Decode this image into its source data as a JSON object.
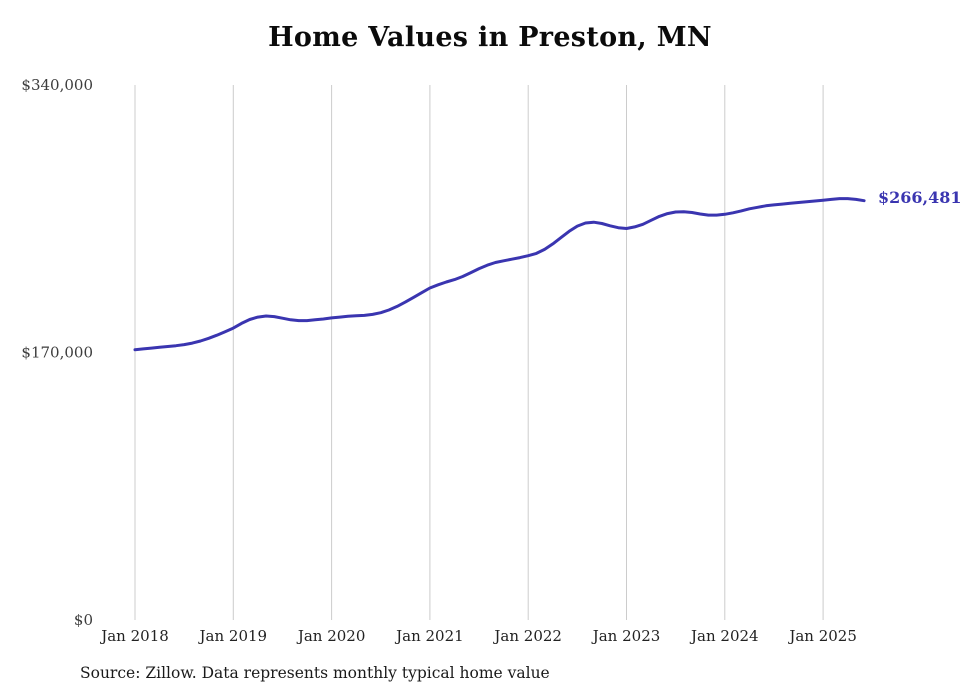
{
  "page": {
    "source_note": "Source: Zillow. Data represents monthly typical home value"
  },
  "chart_data": {
    "type": "line",
    "title": "Home Values in Preston, MN",
    "series_name": "Monthly typical home value",
    "x_start": "Jan 2018",
    "x_end": "Jun 2025",
    "x_tick_labels": [
      "Jan 2018",
      "Jan 2019",
      "Jan 2020",
      "Jan 2021",
      "Jan 2022",
      "Jan 2023",
      "Jan 2024",
      "Jan 2025"
    ],
    "y_ticks": [
      {
        "label": "$0",
        "value": 0
      },
      {
        "label": "$170,000",
        "value": 170000
      },
      {
        "label": "$340,000",
        "value": 340000
      }
    ],
    "ylim": [
      0,
      340000
    ],
    "grid": "vertical-only",
    "legend": "none",
    "end_label": "$266,481",
    "end_value": 266481,
    "line_color": "#3a35b0",
    "grid_color": "#cccccc",
    "values": [
      171800,
      172300,
      172800,
      173300,
      173800,
      174300,
      175000,
      176000,
      177300,
      179000,
      181000,
      183200,
      185500,
      188500,
      191000,
      192500,
      193200,
      192800,
      191800,
      190800,
      190300,
      190300,
      190800,
      191300,
      192000,
      192500,
      193000,
      193300,
      193600,
      194200,
      195300,
      197000,
      199300,
      202000,
      205000,
      208000,
      211000,
      213000,
      214800,
      216300,
      218300,
      220800,
      223300,
      225500,
      227200,
      228300,
      229300,
      230300,
      231500,
      233000,
      235500,
      239000,
      243000,
      247000,
      250300,
      252300,
      252800,
      252000,
      250500,
      249300,
      248800,
      249800,
      251500,
      254000,
      256500,
      258300,
      259300,
      259500,
      259000,
      258000,
      257300,
      257300,
      257800,
      258800,
      260000,
      261300,
      262300,
      263200,
      263800,
      264300,
      264800,
      265300,
      265800,
      266300,
      266800,
      267300,
      267800,
      267800,
      267300,
      266481
    ]
  }
}
